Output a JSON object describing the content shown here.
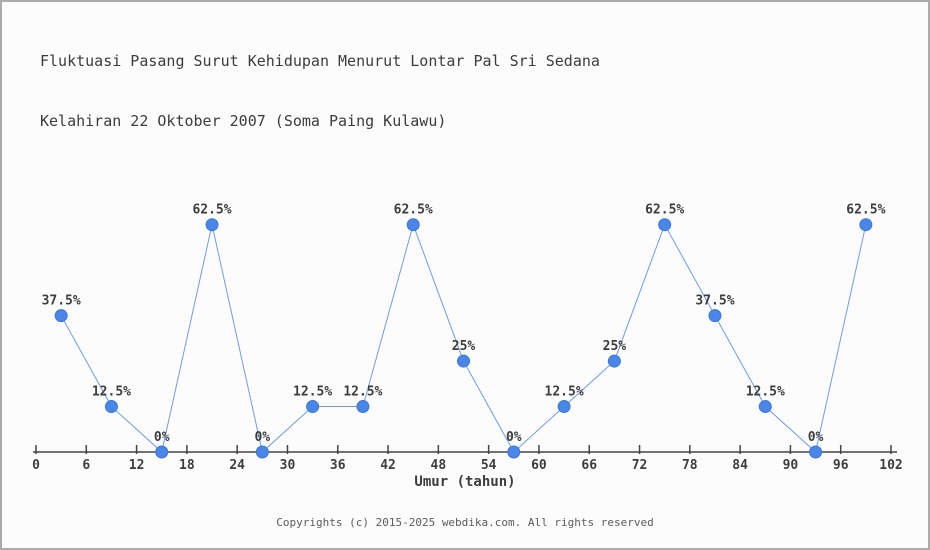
{
  "title": {
    "line1": "Fluktuasi Pasang Surut Kehidupan Menurut Lontar Pal Sri Sedana",
    "line2": "Kelahiran 22 Oktober 2007 (Soma Paing Kulawu)"
  },
  "footer": {
    "copyright": "Copyrights (c) 2015-2025 webdika.com. All rights reserved"
  },
  "chart_data": {
    "type": "line",
    "title": "Fluktuasi Pasang Surut Kehidupan Menurut Lontar Pal Sri Sedana Kelahiran 22 Oktober 2007 (Soma Paing Kulawu)",
    "xlabel": "Umur (tahun)",
    "ylabel": "",
    "x": [
      3,
      9,
      15,
      21,
      27,
      33,
      39,
      45,
      51,
      57,
      63,
      69,
      75,
      81,
      87,
      93,
      99
    ],
    "values": [
      37.5,
      12.5,
      0,
      62.5,
      0,
      12.5,
      12.5,
      62.5,
      25,
      0,
      12.5,
      25,
      62.5,
      37.5,
      12.5,
      0,
      62.5
    ],
    "point_labels": [
      "37.5%",
      "12.5%",
      "0%",
      "62.5%",
      "0%",
      "12.5%",
      "12.5%",
      "62.5%",
      "25%",
      "0%",
      "12.5%",
      "25%",
      "62.5%",
      "37.5%",
      "12.5%",
      "0%",
      "62.5%"
    ],
    "x_ticks": [
      0,
      6,
      12,
      18,
      24,
      30,
      36,
      42,
      48,
      54,
      60,
      66,
      72,
      78,
      84,
      90,
      96,
      102
    ],
    "xlim": [
      0,
      102
    ],
    "ylim": [
      0,
      70
    ],
    "grid": false,
    "legend": null,
    "colors": {
      "marker": "#4a86e8",
      "marker_edge": "#3d76d8",
      "line": "#6f9ce6",
      "axis": "#444444",
      "text": "#3d3d3d"
    }
  }
}
